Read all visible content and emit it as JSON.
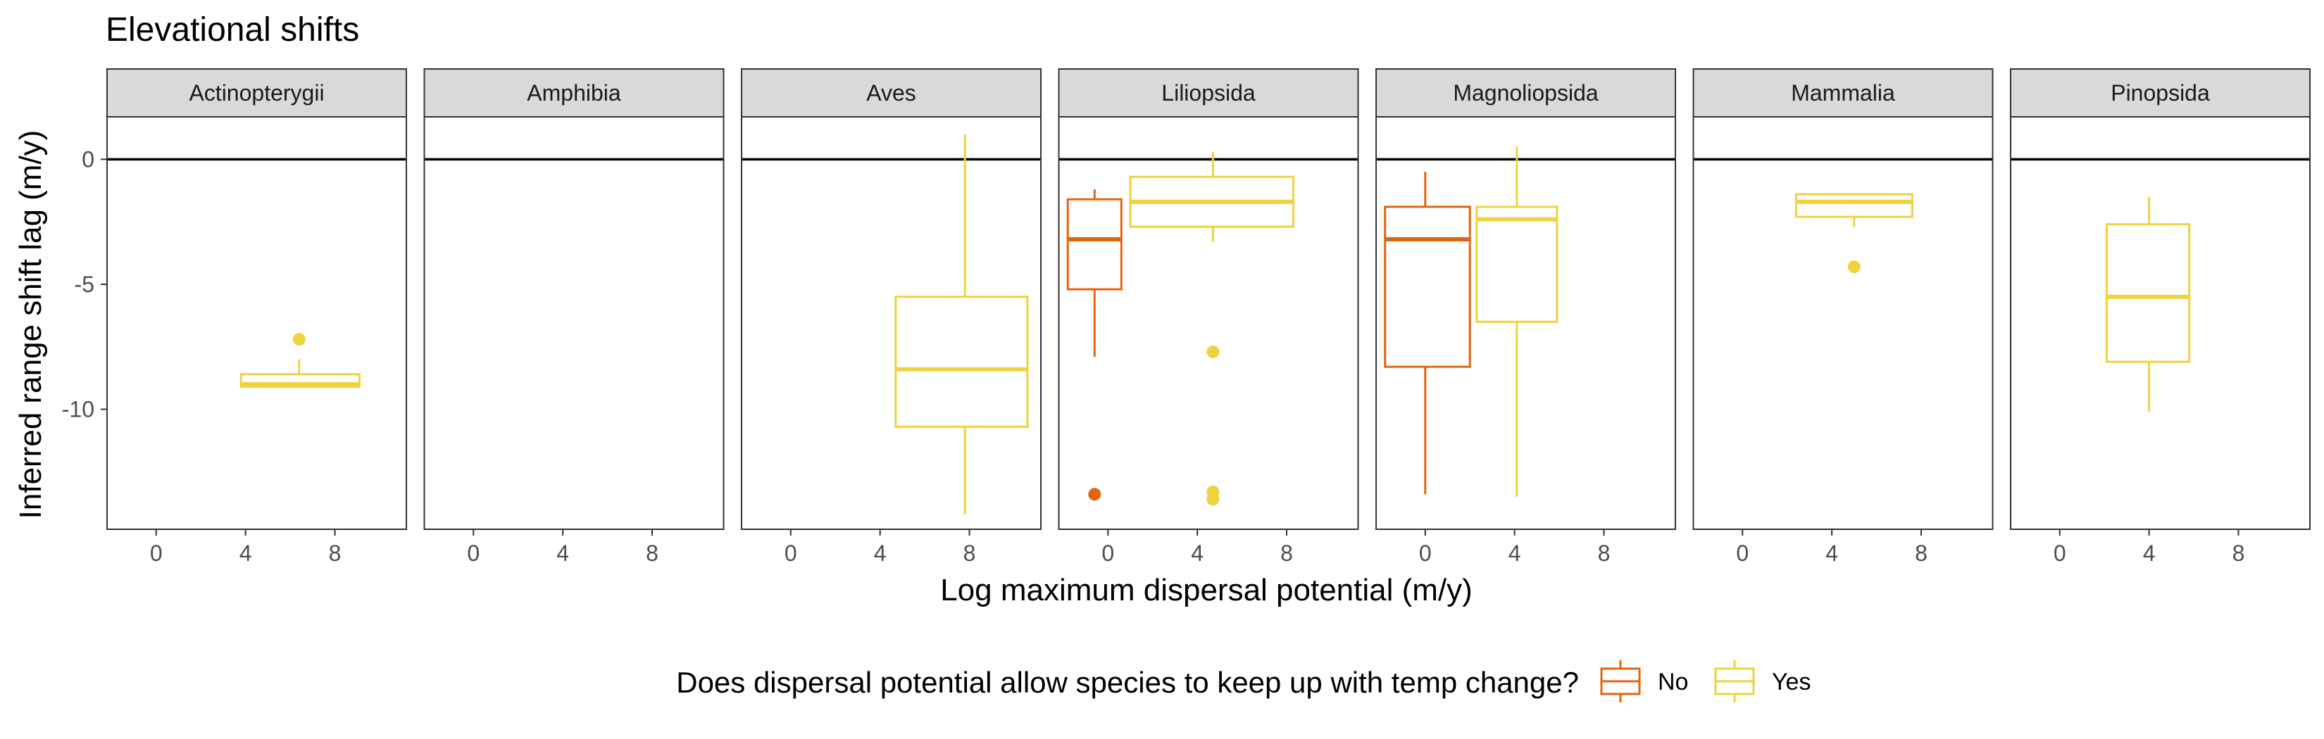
{
  "chart_data": {
    "type": "boxplot",
    "title": "Elevational shifts",
    "xlabel": "Log maximum dispersal potential (m/y)",
    "ylabel": "Inferred range shift lag (m/y)",
    "facet_layout": "single row of 7 panels",
    "xlim": [
      -2.2,
      11.2
    ],
    "ylim": [
      -14.8,
      1.7
    ],
    "x_ticks": [
      "0",
      "4",
      "8"
    ],
    "x_tick_values": [
      0,
      4,
      8
    ],
    "y_ticks": [
      "0",
      "-5",
      "-10"
    ],
    "y_tick_values": [
      0,
      -5,
      -10
    ],
    "reference_line_y": 0,
    "grid": false,
    "legend": {
      "title": "Does dispersal potential allow species to keep up with temp change?",
      "position": "bottom",
      "entries": [
        {
          "label": "No",
          "color": "#E2650F"
        },
        {
          "label": "Yes",
          "color": "#EED33F"
        }
      ]
    },
    "colors": {
      "No": "#E2650F",
      "Yes": "#EED33F",
      "strip_fill": "#D9D9D9",
      "panel_border": "#333333"
    },
    "panels": [
      {
        "label": "Actinopterygii",
        "boxes": [
          {
            "group": "Yes",
            "x": 6.4,
            "x_from": 3.8,
            "x_to": 9.1,
            "min": -9.1,
            "q1": -9.1,
            "median": -9.0,
            "q3": -8.6,
            "max": -8.0,
            "outliers": [
              -7.2
            ]
          }
        ]
      },
      {
        "label": "Amphibia",
        "boxes": []
      },
      {
        "label": "Aves",
        "boxes": [
          {
            "group": "Yes",
            "x": 7.8,
            "x_from": 4.7,
            "x_to": 10.6,
            "min": -14.2,
            "q1": -10.7,
            "median": -8.4,
            "q3": -5.5,
            "max": 1.0,
            "outliers": []
          }
        ]
      },
      {
        "label": "Liliopsida",
        "boxes": [
          {
            "group": "No",
            "x": -0.6,
            "x_from": -1.8,
            "x_to": 0.6,
            "min": -7.9,
            "q1": -5.2,
            "median": -3.2,
            "q3": -1.6,
            "max": -1.2,
            "outliers": [
              -13.4
            ]
          },
          {
            "group": "Yes",
            "x": 4.7,
            "x_from": 1.0,
            "x_to": 8.3,
            "min": -3.3,
            "q1": -2.7,
            "median": -1.7,
            "q3": -0.7,
            "max": 0.3,
            "outliers": [
              -7.7,
              -13.3,
              -13.6
            ]
          }
        ]
      },
      {
        "label": "Magnoliopsida",
        "boxes": [
          {
            "group": "No",
            "x": 0.0,
            "x_from": -1.8,
            "x_to": 2.0,
            "min": -13.4,
            "q1": -8.3,
            "median": -3.2,
            "q3": -1.9,
            "max": -0.5,
            "outliers": []
          },
          {
            "group": "Yes",
            "x": 4.1,
            "x_from": 2.3,
            "x_to": 5.9,
            "min": -13.5,
            "q1": -6.5,
            "median": -2.4,
            "q3": -1.9,
            "max": 0.5,
            "outliers": []
          }
        ]
      },
      {
        "label": "Mammalia",
        "boxes": [
          {
            "group": "Yes",
            "x": 5.0,
            "x_from": 2.4,
            "x_to": 7.6,
            "min": -2.7,
            "q1": -2.3,
            "median": -1.7,
            "q3": -1.4,
            "max": -1.4,
            "outliers": [
              -4.3
            ]
          }
        ]
      },
      {
        "label": "Pinopsida",
        "boxes": [
          {
            "group": "Yes",
            "x": 4.0,
            "x_from": 2.1,
            "x_to": 5.8,
            "min": -10.1,
            "q1": -8.1,
            "median": -5.5,
            "q3": -2.6,
            "max": -1.5,
            "outliers": []
          }
        ]
      }
    ]
  }
}
